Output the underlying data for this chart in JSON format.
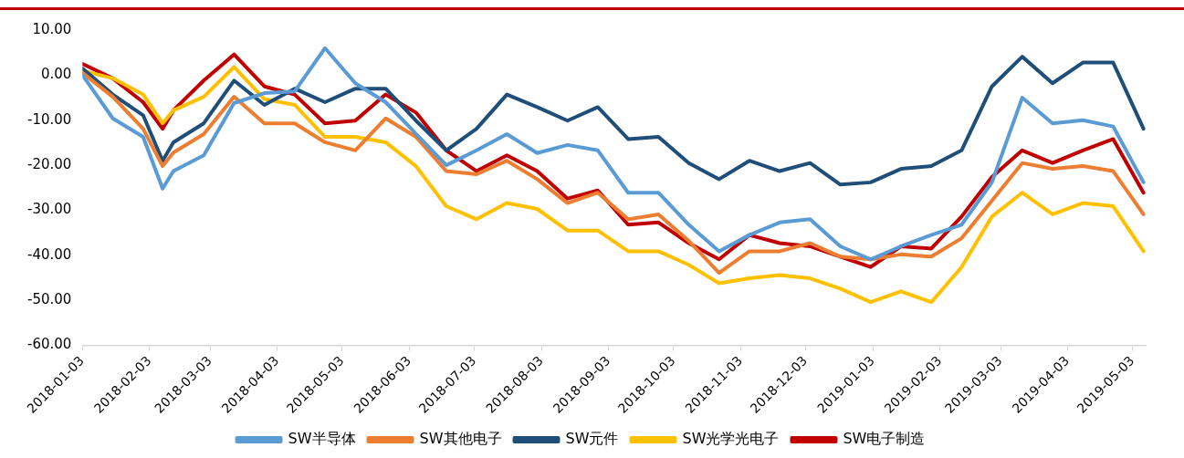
{
  "chart_data": {
    "type": "line",
    "legend": "bottom",
    "x": [
      "2018-01-03",
      "2018-01-17",
      "2018-01-31",
      "2018-02-09",
      "2018-02-14",
      "2018-02-28",
      "2018-03-14",
      "2018-03-28",
      "2018-04-11",
      "2018-04-25",
      "2018-05-09",
      "2018-05-23",
      "2018-06-06",
      "2018-06-20",
      "2018-07-04",
      "2018-07-18",
      "2018-08-01",
      "2018-08-15",
      "2018-08-29",
      "2018-09-12",
      "2018-09-26",
      "2018-10-10",
      "2018-10-24",
      "2018-11-07",
      "2018-11-21",
      "2018-12-05",
      "2018-12-19",
      "2019-01-02",
      "2019-01-16",
      "2019-01-30",
      "2019-02-13",
      "2019-02-27",
      "2019-03-13",
      "2019-03-27",
      "2019-04-10",
      "2019-04-24",
      "2019-05-08"
    ],
    "xlim": [
      "2018-01-03",
      "2019-05-09"
    ],
    "xticks": [
      "2018-01-03",
      "2018-02-03",
      "2018-03-03",
      "2018-04-03",
      "2018-05-03",
      "2018-06-03",
      "2018-07-03",
      "2018-08-03",
      "2018-09-03",
      "2018-10-03",
      "2018-11-03",
      "2018-12-03",
      "2019-01-03",
      "2019-02-03",
      "2019-03-03",
      "2019-04-03",
      "2019-05-03"
    ],
    "ylim": [
      -60,
      10
    ],
    "yticks": [
      {
        "value": 10,
        "label": "10.00"
      },
      {
        "value": 0,
        "label": "0.00"
      },
      {
        "value": -10,
        "label": "-10.00"
      },
      {
        "value": -20,
        "label": "-20.00"
      },
      {
        "value": -30,
        "label": "-30.00"
      },
      {
        "value": -40,
        "label": "-40.00"
      },
      {
        "value": -50,
        "label": "-50.00"
      },
      {
        "value": -60,
        "label": "-60.00"
      }
    ],
    "series": [
      {
        "name": "SW半导体",
        "color": "#5b9bd5",
        "values": [
          0,
          -9.6,
          -13.7,
          -25.2,
          -21.3,
          -17.8,
          -6.2,
          -4,
          -3.6,
          6,
          -1.8,
          -6,
          -13,
          -20,
          -16.7,
          -13.1,
          -17.3,
          -15.5,
          -16.7,
          -26.1,
          -26.1,
          -33.2,
          -39.1,
          -35.5,
          -32.7,
          -32,
          -38,
          -40.9,
          -38,
          -35.5,
          -33.2,
          -23.8,
          -5,
          -10.7,
          -10,
          -11.4,
          -23.8
        ]
      },
      {
        "name": "SW其他电子",
        "color": "#ed7d31",
        "values": [
          0.5,
          -4.8,
          -11.9,
          -20.2,
          -17.2,
          -13.1,
          -4.8,
          -10.7,
          -10.7,
          -14.9,
          -16.7,
          -9.6,
          -13.7,
          -21.3,
          -22,
          -19,
          -23.1,
          -28.4,
          -26.1,
          -32,
          -30.9,
          -36.8,
          -43.9,
          -39.1,
          -39.1,
          -37.3,
          -40.3,
          -40.9,
          -39.8,
          -40.3,
          -36.2,
          -27.9,
          -19.5,
          -20.8,
          -20.2,
          -21.3,
          -30.9
        ]
      },
      {
        "name": "SW元件",
        "color": "#1f4e79",
        "values": [
          1.5,
          -4.3,
          -8.9,
          -19,
          -14.9,
          -10.7,
          -1.2,
          -6.6,
          -3,
          -6,
          -3,
          -3,
          -10.1,
          -16.7,
          -11.9,
          -4.3,
          -7.1,
          -10.1,
          -7.1,
          -14.2,
          -13.7,
          -19.5,
          -23.1,
          -19,
          -21.3,
          -19.5,
          -24.3,
          -23.8,
          -20.8,
          -20.2,
          -16.7,
          -2.5,
          4.1,
          -1.8,
          2.8,
          2.8,
          -11.9
        ]
      },
      {
        "name": "SW光学光电子",
        "color": "#ffc000",
        "values": [
          1,
          -0.7,
          -4.3,
          -10.7,
          -7.8,
          -4.8,
          1.8,
          -5.3,
          -6.6,
          -13.7,
          -13.7,
          -14.9,
          -20.2,
          -29.1,
          -32,
          -28.4,
          -29.7,
          -34.5,
          -34.5,
          -39.1,
          -39.1,
          -42.1,
          -46.2,
          -45.1,
          -44.4,
          -45.1,
          -47.4,
          -50.4,
          -48,
          -50.4,
          -42.6,
          -31.4,
          -26.1,
          -30.9,
          -28.4,
          -29.1,
          -39.1
        ]
      },
      {
        "name": "SW电子制造",
        "color": "#c00000",
        "values": [
          2.5,
          -0.7,
          -6,
          -11.9,
          -7.8,
          -1.2,
          4.6,
          -2.5,
          -4.3,
          -10.7,
          -10.1,
          -4.3,
          -8.3,
          -16.7,
          -21.3,
          -17.8,
          -21.3,
          -27.4,
          -25.6,
          -33.2,
          -32.7,
          -37.3,
          -40.9,
          -35.5,
          -37.3,
          -38,
          -40.3,
          -42.6,
          -38,
          -38.5,
          -31.4,
          -22.6,
          -16.7,
          -19.5,
          -16.7,
          -14.2,
          -26.1
        ]
      }
    ]
  }
}
